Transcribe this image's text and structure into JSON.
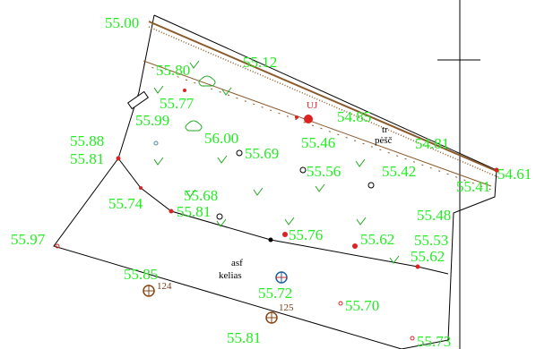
{
  "map": {
    "elevations": [
      {
        "label": "55.00"
      },
      {
        "label": "55.12"
      },
      {
        "label": "55.80"
      },
      {
        "label": "55.77"
      },
      {
        "label": "55.99"
      },
      {
        "label": "55.88"
      },
      {
        "label": "55.81"
      },
      {
        "label": "56.00"
      },
      {
        "label": "54.85"
      },
      {
        "label": "55.46"
      },
      {
        "label": "54.81"
      },
      {
        "label": "55.69"
      },
      {
        "label": "55.56"
      },
      {
        "label": "55.42"
      },
      {
        "label": "54.61"
      },
      {
        "label": "55.41"
      },
      {
        "label": "55.68"
      },
      {
        "label": "55.74"
      },
      {
        "label": "55.81"
      },
      {
        "label": "55.48"
      },
      {
        "label": "55.97"
      },
      {
        "label": "55.76"
      },
      {
        "label": "55.62"
      },
      {
        "label": "55.53"
      },
      {
        "label": "55.62"
      },
      {
        "label": "55.85"
      },
      {
        "label": "55.72"
      },
      {
        "label": "55.70"
      },
      {
        "label": "55.81"
      },
      {
        "label": "55.73"
      }
    ],
    "annotations": {
      "surface_line1": "asf",
      "surface_line2": "kelias",
      "feature_line1": "tr",
      "feature_line2": "pėšč",
      "sign_text": "UJ",
      "point_124": "124",
      "point_125": "125"
    },
    "colors": {
      "elevation_text": "#22ee22",
      "boundary": "#000000",
      "hedge": "#8b5a2b",
      "marker": "#dd2222",
      "grass": "#22aa22"
    }
  }
}
